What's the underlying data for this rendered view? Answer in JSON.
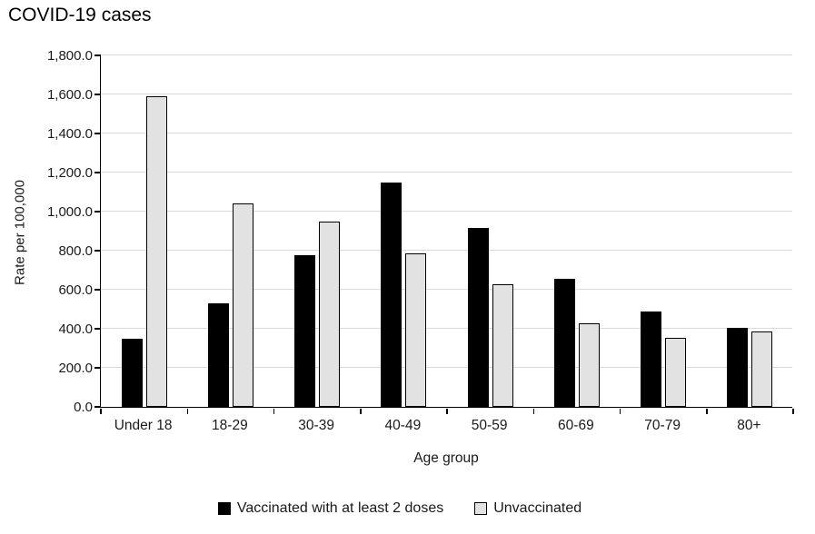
{
  "chart_data": {
    "type": "bar",
    "title": "COVID-19 cases",
    "xlabel": "Age group",
    "ylabel": "Rate per 100,000",
    "categories": [
      "Under 18",
      "18-29",
      "30-39",
      "40-49",
      "50-59",
      "60-69",
      "70-79",
      "80+"
    ],
    "series": [
      {
        "name": "Vaccinated with at least 2 doses",
        "color": "#000000",
        "border_color": "#000000",
        "values": [
          350,
          530,
          775,
          1150,
          915,
          655,
          490,
          405
        ]
      },
      {
        "name": "Unvaccinated",
        "color": "#e2e2e2",
        "border_color": "#000000",
        "values": [
          1590,
          1040,
          950,
          785,
          630,
          430,
          355,
          385
        ]
      }
    ],
    "ylim": [
      0,
      1800
    ],
    "y_ticks": [
      {
        "value": 0,
        "label": "0.0"
      },
      {
        "value": 200,
        "label": "200.0"
      },
      {
        "value": 400,
        "label": "400.0"
      },
      {
        "value": 600,
        "label": "600.0"
      },
      {
        "value": 800,
        "label": "800.0"
      },
      {
        "value": 1000,
        "label": "1,000.0"
      },
      {
        "value": 1200,
        "label": "1,200.0"
      },
      {
        "value": 1400,
        "label": "1,400.0"
      },
      {
        "value": 1600,
        "label": "1,600.0"
      },
      {
        "value": 1800,
        "label": "1,800.0"
      }
    ],
    "grid": true,
    "gridline_color": "#d9d9d9",
    "axis_color": "#000000",
    "legend_position": "bottom"
  }
}
